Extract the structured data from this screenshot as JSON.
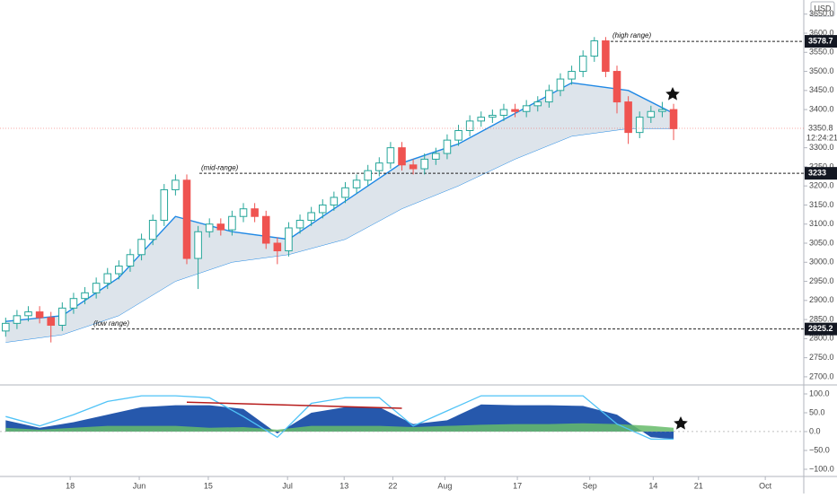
{
  "chart_data": {
    "type": "candlestick",
    "currency": "USD",
    "xlim": [
      -0.5,
      70.5
    ],
    "xticks": [
      {
        "value": 5.7,
        "label": "18"
      },
      {
        "value": 11.8,
        "label": "Jun"
      },
      {
        "value": 17.9,
        "label": "15"
      },
      {
        "value": 24.9,
        "label": "Jul"
      },
      {
        "value": 29.9,
        "label": "13"
      },
      {
        "value": 34.2,
        "label": "22"
      },
      {
        "value": 38.8,
        "label": "Aug"
      },
      {
        "value": 45.2,
        "label": "17"
      },
      {
        "value": 51.6,
        "label": "Sep"
      },
      {
        "value": 57.2,
        "label": "14"
      },
      {
        "value": 61.2,
        "label": "21"
      },
      {
        "value": 67.1,
        "label": "Oct"
      }
    ],
    "ylim": [
      2681,
      3687
    ],
    "yticks": [
      {
        "value": 2700,
        "label": "2700.0"
      },
      {
        "value": 2750,
        "label": "2750.0"
      },
      {
        "value": 2800,
        "label": "2800.0"
      },
      {
        "value": 2850,
        "label": "2850.0"
      },
      {
        "value": 2900,
        "label": "2900.0"
      },
      {
        "value": 2950,
        "label": "2950.0"
      },
      {
        "value": 3000,
        "label": "3000.0"
      },
      {
        "value": 3050,
        "label": "3050.0"
      },
      {
        "value": 3100,
        "label": "3100.0"
      },
      {
        "value": 3150,
        "label": "3150.0"
      },
      {
        "value": 3200,
        "label": "3200.0"
      },
      {
        "value": 3250,
        "label": "3250.0"
      },
      {
        "value": 3300,
        "label": "3300.0"
      },
      {
        "value": 3400,
        "label": "3400.0"
      },
      {
        "value": 3450,
        "label": "3450.0"
      },
      {
        "value": 3500,
        "label": "3500.0"
      },
      {
        "value": 3550,
        "label": "3550.0"
      },
      {
        "value": 3600,
        "label": "3600.0"
      },
      {
        "value": 3650,
        "label": "3650.0"
      }
    ],
    "open": [
      2820,
      2840,
      2860,
      2870,
      2855,
      2835,
      2880,
      2905,
      2920,
      2945,
      2970,
      2990,
      3020,
      3060,
      3110,
      3190,
      3215,
      3010,
      3080,
      3100,
      3085,
      3120,
      3140,
      3120,
      3050,
      3030,
      3090,
      3110,
      3130,
      3150,
      3170,
      3195,
      3215,
      3240,
      3260,
      3300,
      3255,
      3245,
      3270,
      3285,
      3320,
      3345,
      3370,
      3380,
      3385,
      3400,
      3395,
      3410,
      3420,
      3450,
      3480,
      3500,
      3540,
      3580,
      3500,
      3420,
      3340,
      3380,
      3395,
      3400
    ],
    "high": [
      2855,
      2875,
      2885,
      2885,
      2870,
      2895,
      2920,
      2935,
      2960,
      2985,
      3005,
      3035,
      3075,
      3125,
      3205,
      3230,
      3230,
      3095,
      3115,
      3115,
      3135,
      3155,
      3155,
      3135,
      3065,
      3105,
      3125,
      3145,
      3165,
      3185,
      3210,
      3230,
      3255,
      3275,
      3315,
      3315,
      3270,
      3285,
      3300,
      3335,
      3360,
      3385,
      3395,
      3400,
      3415,
      3415,
      3425,
      3435,
      3465,
      3495,
      3515,
      3555,
      3590,
      3590,
      3515,
      3435,
      3395,
      3410,
      3420,
      3415
    ],
    "low": [
      2805,
      2825,
      2845,
      2840,
      2790,
      2820,
      2865,
      2890,
      2905,
      2930,
      2955,
      2975,
      3005,
      3045,
      3095,
      3175,
      2995,
      2930,
      3065,
      3070,
      3070,
      3105,
      3105,
      3035,
      2995,
      3015,
      3075,
      3095,
      3115,
      3135,
      3155,
      3180,
      3200,
      3225,
      3245,
      3240,
      3230,
      3230,
      3255,
      3270,
      3305,
      3330,
      3355,
      3365,
      3370,
      3380,
      3380,
      3395,
      3405,
      3435,
      3465,
      3485,
      3525,
      3485,
      3390,
      3310,
      3325,
      3365,
      3380,
      3320
    ],
    "close": [
      2840,
      2860,
      2870,
      2855,
      2835,
      2880,
      2905,
      2920,
      2945,
      2970,
      2990,
      3020,
      3060,
      3110,
      3190,
      3215,
      3010,
      3080,
      3100,
      3085,
      3120,
      3140,
      3120,
      3050,
      3030,
      3090,
      3110,
      3130,
      3150,
      3170,
      3195,
      3215,
      3240,
      3260,
      3300,
      3255,
      3245,
      3270,
      3285,
      3320,
      3345,
      3370,
      3380,
      3385,
      3400,
      3395,
      3410,
      3420,
      3450,
      3480,
      3500,
      3540,
      3580,
      3500,
      3420,
      3340,
      3380,
      3395,
      3400,
      3350
    ],
    "up_color": "#26a69a",
    "down_color": "#ef5350",
    "ribbon": {
      "x": [
        0,
        5,
        10,
        15,
        20,
        25,
        30,
        35,
        40,
        45,
        50,
        55,
        59
      ],
      "upper": [
        2845,
        2860,
        2960,
        3120,
        3080,
        3060,
        3160,
        3260,
        3310,
        3390,
        3470,
        3450,
        3390
      ],
      "lower": [
        2790,
        2810,
        2860,
        2950,
        3000,
        3020,
        3060,
        3140,
        3200,
        3270,
        3330,
        3350,
        3350
      ],
      "color": "#1e88e5",
      "fill": "#cfd8e3"
    },
    "levels": [
      {
        "value": 3578.7,
        "note": "(high range)"
      },
      {
        "value": 3233.0,
        "note": "(mid-range)"
      },
      {
        "value": 2825.2,
        "note": "(low range)"
      }
    ],
    "last_price": 3350.8,
    "countdown": "12:24:21",
    "oscillator": {
      "type": "area",
      "ylim": [
        -116.7,
        121.4
      ],
      "yticks": [
        {
          "value": 100,
          "label": "100.0"
        },
        {
          "value": 50,
          "label": "50.0"
        },
        {
          "value": 0,
          "label": "0.0"
        },
        {
          "value": -50,
          "label": "−50.0"
        },
        {
          "value": -100,
          "label": "−100.0"
        }
      ],
      "x": [
        0,
        3,
        6,
        9,
        12,
        15,
        18,
        21,
        24,
        27,
        30,
        33,
        36,
        39,
        42,
        45,
        48,
        51,
        54,
        57,
        59
      ],
      "wave": {
        "values": [
          30,
          10,
          25,
          45,
          65,
          70,
          70,
          60,
          -5,
          50,
          65,
          65,
          20,
          30,
          72,
          70,
          70,
          68,
          45,
          -15,
          -20
        ],
        "color": "#1a4fa8"
      },
      "signal": {
        "values": [
          40,
          15,
          45,
          80,
          95,
          95,
          90,
          40,
          -15,
          75,
          90,
          90,
          15,
          55,
          95,
          95,
          95,
          95,
          20,
          -20,
          -20
        ],
        "color": "#4fc3f7"
      },
      "flow": {
        "values": [
          10,
          5,
          10,
          15,
          15,
          15,
          10,
          12,
          5,
          15,
          15,
          15,
          12,
          15,
          18,
          20,
          20,
          22,
          20,
          15,
          10
        ],
        "color": "#66bb6a"
      },
      "divergence": {
        "x": [
          16,
          35
        ],
        "values": [
          78,
          62
        ],
        "color": "#b71c1c"
      }
    }
  }
}
